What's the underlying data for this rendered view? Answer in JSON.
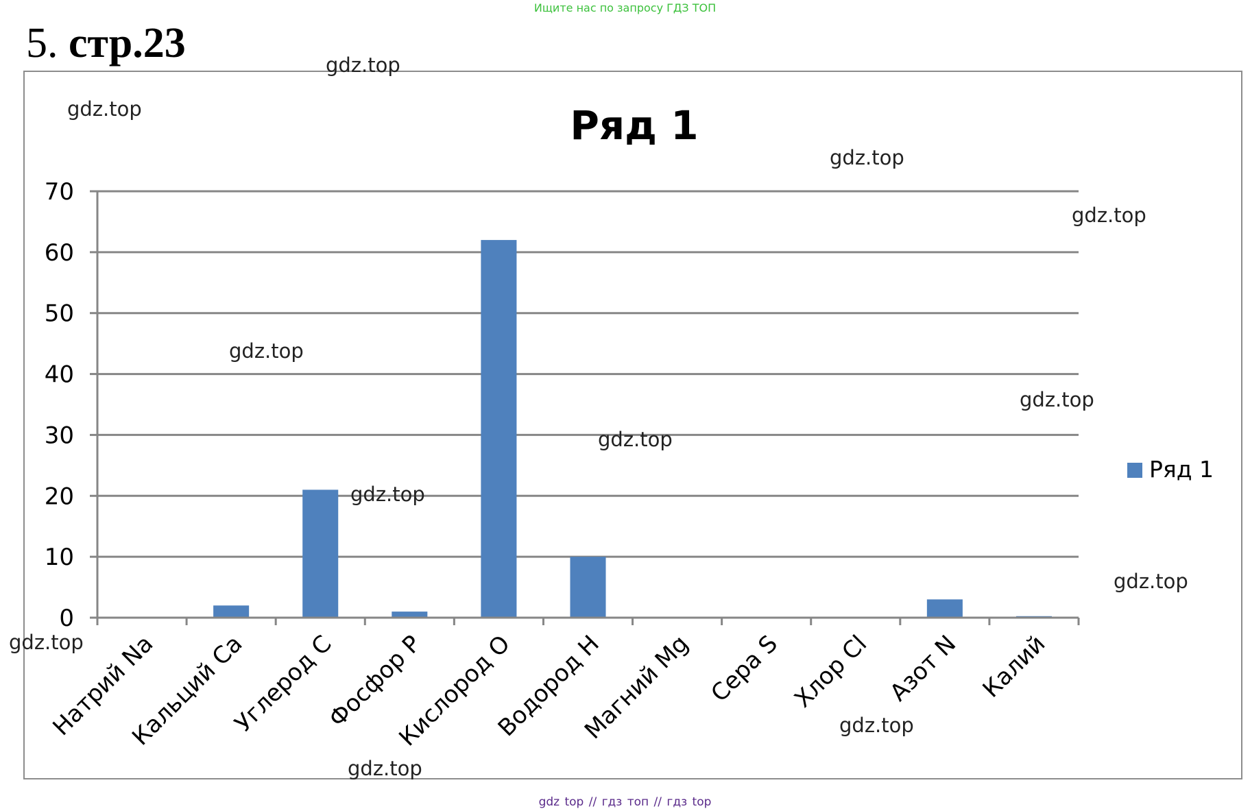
{
  "top_note": "Ищите нас по запросу ГДЗ ТОП",
  "heading": {
    "number": "5.",
    "page": "стр.23"
  },
  "bottom_note": "gdz top  //  гдз топ  //  гдз top",
  "watermark_text": "gdz.top",
  "colors": {
    "bar": "#4f81bd",
    "grid": "#868686",
    "axis": "#868686",
    "frame": "#8c8c8c"
  },
  "chart_data": {
    "type": "bar",
    "title": "Ряд 1",
    "categories": [
      "Натрий Na",
      "Кальций Ca",
      "Углерод C",
      "Фосфор P",
      "Кислород O",
      "Водород H",
      "Магний Mg",
      "Сера S",
      "Хлор Cl",
      "Азот N",
      "Калий"
    ],
    "series": [
      {
        "name": "Ряд 1",
        "values": [
          0,
          2,
          21,
          1,
          62,
          10,
          0,
          0,
          0,
          3,
          0.25
        ]
      }
    ],
    "ylim": [
      0,
      70
    ],
    "yticks": [
      0,
      10,
      20,
      30,
      40,
      50,
      60,
      70
    ],
    "grid": true,
    "legend": "right"
  }
}
